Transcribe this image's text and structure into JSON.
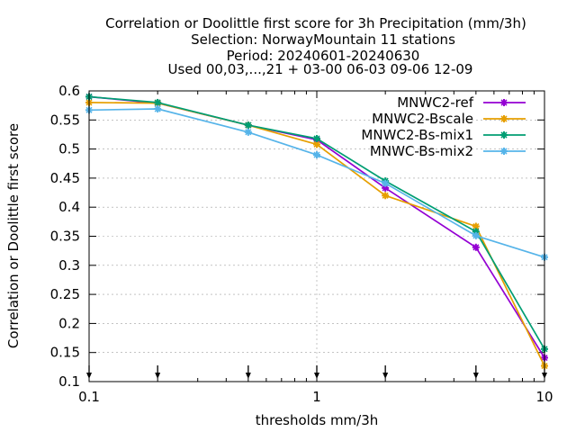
{
  "chart_data": {
    "type": "line",
    "title_lines": [
      "Correlation or Doolittle first score  for 3h Precipitation (mm/3h)",
      "Selection: NorwayMountain     11 stations",
      "Period: 20240601-20240630",
      "Used 00,03,...,21 + 03-00 06-03 09-06 12-09"
    ],
    "xlabel": "thresholds mm/3h",
    "ylabel": "Correlation or Doolittle first score",
    "xscale": "log",
    "xlim": [
      0.1,
      10
    ],
    "ylim": [
      0.1,
      0.6
    ],
    "xticks": [
      {
        "value": 0.1,
        "label": "0.1"
      },
      {
        "value": 1,
        "label": "1"
      },
      {
        "value": 10,
        "label": "10"
      }
    ],
    "yticks": [
      {
        "value": 0.1,
        "label": "0.1"
      },
      {
        "value": 0.15,
        "label": "0.15"
      },
      {
        "value": 0.2,
        "label": "0.2"
      },
      {
        "value": 0.25,
        "label": "0.25"
      },
      {
        "value": 0.3,
        "label": "0.3"
      },
      {
        "value": 0.35,
        "label": "0.35"
      },
      {
        "value": 0.4,
        "label": "0.4"
      },
      {
        "value": 0.45,
        "label": "0.45"
      },
      {
        "value": 0.5,
        "label": "0.5"
      },
      {
        "value": 0.55,
        "label": "0.55"
      },
      {
        "value": 0.6,
        "label": "0.6"
      }
    ],
    "threshold_arrows": [
      0.1,
      0.2,
      0.5,
      1,
      2,
      5,
      10
    ],
    "grid": true,
    "legend_position": "top-right",
    "x": [
      0.1,
      0.2,
      0.5,
      1,
      2,
      5,
      10
    ],
    "series": [
      {
        "name": "MNWC2-ref",
        "color": "#9400d3",
        "values": [
          0.59,
          0.579,
          0.541,
          0.516,
          0.433,
          0.331,
          0.141
        ]
      },
      {
        "name": "MNWC2-Bscale",
        "color": "#e69f00",
        "values": [
          0.58,
          0.579,
          0.541,
          0.508,
          0.42,
          0.367,
          0.127
        ]
      },
      {
        "name": "MNWC2-Bs-mix1",
        "color": "#009e73",
        "values": [
          0.59,
          0.58,
          0.541,
          0.518,
          0.445,
          0.358,
          0.156
        ]
      },
      {
        "name": "MNWC-Bs-mix2",
        "color": "#56b4e9",
        "values": [
          0.567,
          0.569,
          0.529,
          0.49,
          0.441,
          0.351,
          0.314
        ]
      }
    ]
  }
}
